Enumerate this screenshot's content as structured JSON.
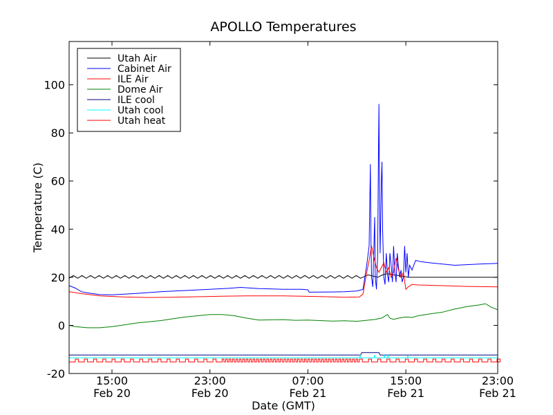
{
  "chart_data": {
    "type": "line",
    "title": "APOLLO Temperatures",
    "xlabel": "Date (GMT)",
    "ylabel": "Temperature (C)",
    "ylim": [
      -20,
      118
    ],
    "xlim_hours": [
      11.5,
      46.5
    ],
    "x_unit": "hours since Feb 20 00:00 GMT",
    "yticks": [
      -20,
      0,
      20,
      40,
      60,
      80,
      100
    ],
    "ytick_labels": [
      "-20",
      "0",
      "20",
      "40",
      "60",
      "80",
      "100"
    ],
    "xticks": [
      {
        "hours": 15,
        "time": "15:00",
        "date": "Feb 20"
      },
      {
        "hours": 23,
        "time": "23:00",
        "date": "Feb 20"
      },
      {
        "hours": 31,
        "time": "07:00",
        "date": "Feb 21"
      },
      {
        "hours": 39,
        "time": "15:00",
        "date": "Feb 21"
      },
      {
        "hours": 47,
        "time": "23:00",
        "date": "Feb 21"
      }
    ],
    "legend_position": "top-left",
    "series": [
      {
        "name": "Utah Air",
        "color": "#000000",
        "style": "sawtooth",
        "points": [
          [
            11.5,
            20
          ],
          [
            35.5,
            20
          ],
          [
            35.9,
            21
          ],
          [
            36.3,
            20.5
          ],
          [
            36.7,
            20
          ],
          [
            37.1,
            21
          ],
          [
            37.5,
            21.5
          ],
          [
            38,
            21
          ],
          [
            38.7,
            20.5
          ],
          [
            39.2,
            20
          ],
          [
            40,
            20
          ],
          [
            46.5,
            20
          ]
        ],
        "oscillation": {
          "amplitude": 0.7,
          "period_hours": 0.7,
          "until_hours": 35.5
        }
      },
      {
        "name": "Cabinet Air",
        "color": "#0000ff",
        "points": [
          [
            11.5,
            16.5
          ],
          [
            12,
            15.5
          ],
          [
            12.5,
            14
          ],
          [
            13,
            13.5
          ],
          [
            14,
            12.8
          ],
          [
            15,
            12.7
          ],
          [
            17,
            13.3
          ],
          [
            19,
            14
          ],
          [
            21,
            14.5
          ],
          [
            23,
            15
          ],
          [
            24.5,
            15.4
          ],
          [
            25.5,
            15.8
          ],
          [
            27,
            15.3
          ],
          [
            29,
            15
          ],
          [
            30.5,
            15
          ],
          [
            31,
            14.8
          ],
          [
            31.1,
            13.8
          ],
          [
            33,
            13.9
          ],
          [
            34,
            14
          ],
          [
            35,
            14.3
          ],
          [
            35.5,
            15
          ],
          [
            35.8,
            25
          ],
          [
            36,
            33
          ],
          [
            36.1,
            67
          ],
          [
            36.15,
            35
          ],
          [
            36.2,
            20
          ],
          [
            36.3,
            16
          ],
          [
            36.35,
            25
          ],
          [
            36.45,
            45
          ],
          [
            36.5,
            20
          ],
          [
            36.6,
            15
          ],
          [
            36.7,
            30
          ],
          [
            36.75,
            65
          ],
          [
            36.8,
            92
          ],
          [
            36.85,
            50
          ],
          [
            36.9,
            30
          ],
          [
            37,
            60
          ],
          [
            37.05,
            68
          ],
          [
            37.1,
            40
          ],
          [
            37.2,
            20
          ],
          [
            37.3,
            17
          ],
          [
            37.4,
            30
          ],
          [
            37.5,
            21
          ],
          [
            37.6,
            18
          ],
          [
            37.7,
            30
          ],
          [
            37.8,
            25
          ],
          [
            37.9,
            18
          ],
          [
            38,
            33
          ],
          [
            38.1,
            22
          ],
          [
            38.2,
            18
          ],
          [
            38.3,
            30
          ],
          [
            38.4,
            24
          ],
          [
            38.5,
            20
          ],
          [
            38.6,
            23
          ],
          [
            38.7,
            18
          ],
          [
            38.8,
            20
          ],
          [
            38.9,
            33
          ],
          [
            39,
            22
          ],
          [
            39.1,
            30
          ],
          [
            39.2,
            20
          ],
          [
            39.3,
            25
          ],
          [
            39.5,
            23
          ],
          [
            39.8,
            27
          ],
          [
            40.2,
            26.5
          ],
          [
            41,
            26
          ],
          [
            43,
            25
          ],
          [
            45,
            25.5
          ],
          [
            46.5,
            25.8
          ]
        ]
      },
      {
        "name": "ILE Air",
        "color": "#ff0000",
        "points": [
          [
            11.5,
            14
          ],
          [
            12.5,
            13.2
          ],
          [
            14,
            12.3
          ],
          [
            16,
            11.8
          ],
          [
            18,
            11.6
          ],
          [
            20,
            11.7
          ],
          [
            22,
            11.9
          ],
          [
            24,
            12.1
          ],
          [
            26,
            12.3
          ],
          [
            29,
            12.3
          ],
          [
            32,
            12
          ],
          [
            34,
            11.7
          ],
          [
            35.2,
            11.8
          ],
          [
            35.5,
            13
          ],
          [
            35.8,
            22
          ],
          [
            36,
            27
          ],
          [
            36.2,
            33
          ],
          [
            36.4,
            28
          ],
          [
            36.6,
            24
          ],
          [
            36.8,
            22
          ],
          [
            37,
            24
          ],
          [
            37.2,
            26
          ],
          [
            37.4,
            22
          ],
          [
            37.6,
            24
          ],
          [
            37.8,
            20
          ],
          [
            38,
            22
          ],
          [
            38.2,
            28
          ],
          [
            38.4,
            23
          ],
          [
            38.6,
            20
          ],
          [
            38.8,
            22
          ],
          [
            39,
            15
          ],
          [
            39.2,
            16
          ],
          [
            39.5,
            17
          ],
          [
            40,
            16.8
          ],
          [
            42,
            16.5
          ],
          [
            44,
            16.2
          ],
          [
            46.5,
            16
          ]
        ]
      },
      {
        "name": "Dome Air",
        "color": "#008000",
        "points": [
          [
            11.5,
            0
          ],
          [
            12,
            -0.5
          ],
          [
            13,
            -1
          ],
          [
            14,
            -1
          ],
          [
            15,
            -0.5
          ],
          [
            16,
            0.2
          ],
          [
            17,
            1
          ],
          [
            18,
            1.5
          ],
          [
            19,
            2
          ],
          [
            20,
            2.8
          ],
          [
            21,
            3.5
          ],
          [
            22,
            4
          ],
          [
            23,
            4.5
          ],
          [
            24,
            4.5
          ],
          [
            25,
            4
          ],
          [
            26,
            3
          ],
          [
            27,
            2.2
          ],
          [
            28,
            2.3
          ],
          [
            29,
            2.4
          ],
          [
            30,
            2.1
          ],
          [
            31,
            2.2
          ],
          [
            32,
            2
          ],
          [
            33,
            1.8
          ],
          [
            34,
            1.9
          ],
          [
            35,
            1.7
          ],
          [
            35.6,
            2
          ],
          [
            36.5,
            2.5
          ],
          [
            37,
            3
          ],
          [
            37.5,
            4.5
          ],
          [
            37.7,
            3
          ],
          [
            38,
            2.5
          ],
          [
            38.4,
            3
          ],
          [
            39,
            3.5
          ],
          [
            39.5,
            3.3
          ],
          [
            40,
            4
          ],
          [
            41,
            4.8
          ],
          [
            42,
            5.5
          ],
          [
            43,
            6.8
          ],
          [
            44,
            7.8
          ],
          [
            45,
            8.5
          ],
          [
            45.5,
            9
          ],
          [
            46,
            7.5
          ],
          [
            46.5,
            6.5
          ]
        ]
      },
      {
        "name": "ILE cool",
        "color": "#000080",
        "points": [
          [
            11.5,
            -12.3
          ],
          [
            35.3,
            -12.3
          ],
          [
            35.4,
            -11.3
          ],
          [
            36.8,
            -11.3
          ],
          [
            36.9,
            -12.3
          ],
          [
            46.5,
            -12.3
          ]
        ]
      },
      {
        "name": "Utah cool",
        "color": "#00ffff",
        "points": [
          [
            11.5,
            -13.5
          ],
          [
            35.2,
            -13.5
          ],
          [
            35.25,
            -12.2
          ],
          [
            35.3,
            -13.5
          ],
          [
            36.4,
            -13.5
          ],
          [
            36.45,
            -12.3
          ],
          [
            36.5,
            -13.5
          ],
          [
            37.2,
            -13.5
          ],
          [
            37.25,
            -12.3
          ],
          [
            37.3,
            -13.5
          ],
          [
            37.5,
            -13.5
          ],
          [
            37.55,
            -12.3
          ],
          [
            37.6,
            -13.5
          ],
          [
            39.1,
            -13.5
          ],
          [
            39.15,
            -12.4
          ],
          [
            39.2,
            -13.5
          ],
          [
            46.5,
            -13.5
          ]
        ]
      },
      {
        "name": "Utah heat",
        "color": "#ff0000",
        "style": "pulse",
        "base": -15.2,
        "high": -14.0,
        "points": [
          [
            11.5,
            -15.2
          ],
          [
            46.5,
            -15.2
          ]
        ],
        "pulses": {
          "start_hours": 12.0,
          "period_hours": 0.75,
          "width_hours": 0.25,
          "dense_from": 24.0,
          "dense_to": 35.0,
          "dense_period_hours": 0.28
        }
      }
    ]
  }
}
